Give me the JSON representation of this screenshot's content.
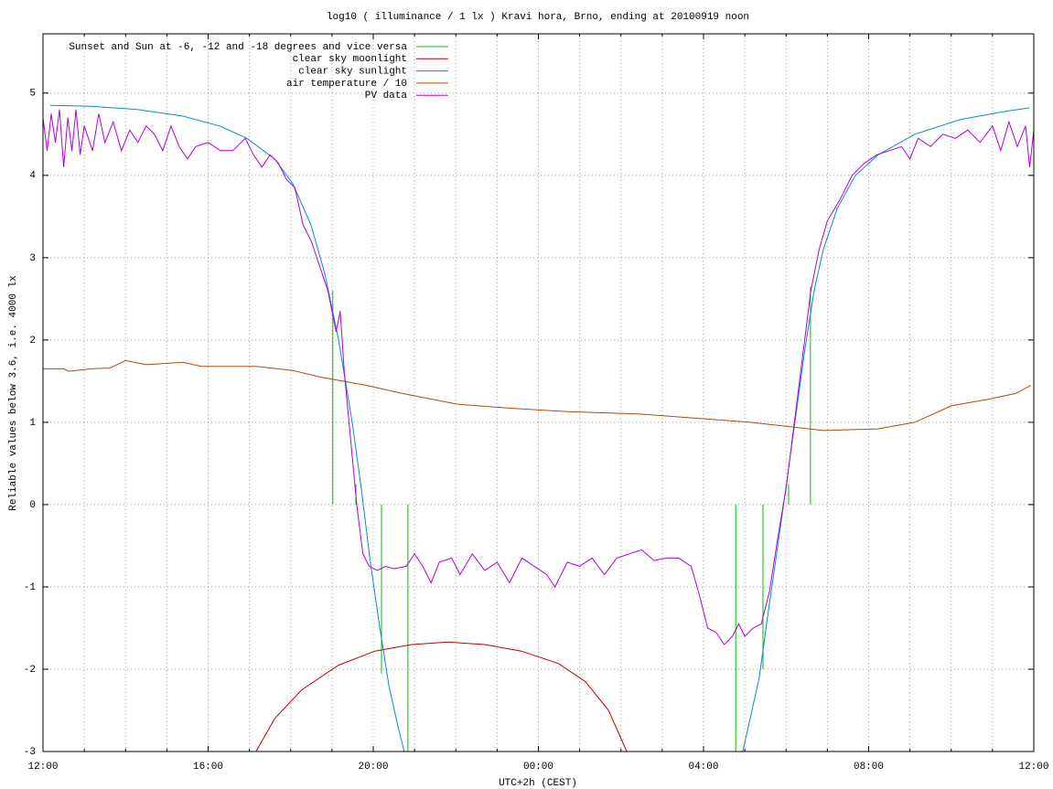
{
  "chart_data": {
    "type": "line",
    "title": "log10 ( illuminance / 1 lx ) Kravi hora, Brno, ending at 20100919 noon",
    "x_label": "UTC+2h (CEST)",
    "y_label": "Reliable values below 3.6, i.e. 4000 lx",
    "xlim": [
      0,
      24
    ],
    "xticks": [
      {
        "value": 0,
        "label": "12:00"
      },
      {
        "value": 4,
        "label": "16:00"
      },
      {
        "value": 8,
        "label": "20:00"
      },
      {
        "value": 12,
        "label": "00:00"
      },
      {
        "value": 16,
        "label": "04:00"
      },
      {
        "value": 20,
        "label": "08:00"
      },
      {
        "value": 24,
        "label": "12:00"
      }
    ],
    "xgrid": [
      1,
      2,
      3,
      5,
      6,
      7,
      9,
      10,
      11,
      13,
      14,
      15,
      17,
      18,
      19,
      21,
      22,
      23
    ],
    "ylim": [
      -3,
      5.72
    ],
    "yticks": [
      -3,
      -2,
      -1,
      0,
      1,
      2,
      3,
      4,
      5
    ],
    "grid": true,
    "legend": "top-left",
    "series": [
      {
        "name": "Sunset and Sun at -6, -12 and -18 degrees and vice versa",
        "color": "#00c000",
        "style": "impulses",
        "x": [
          7.02,
          7.58,
          8.2,
          8.84,
          16.78,
          17.44,
          18.06,
          18.59
        ],
        "values": [
          2.6,
          0.25,
          -2.05,
          -3,
          -3,
          -2,
          0.25,
          2.65
        ]
      },
      {
        "name": "clear sky moonlight",
        "color": "#c00000",
        "style": "lines",
        "x": [
          5.16,
          5.61,
          6.27,
          7.16,
          8.04,
          8.93,
          9.82,
          10.7,
          11.59,
          12.48,
          13.14,
          13.7,
          14.14
        ],
        "values": [
          -3,
          -2.6,
          -2.25,
          -1.95,
          -1.78,
          -1.7,
          -1.67,
          -1.7,
          -1.78,
          -1.93,
          -2.15,
          -2.5,
          -3
        ]
      },
      {
        "name": "clear sky sunlight",
        "color": "#0a88d8",
        "style": "lines",
        "x": [
          0.18,
          1.17,
          2.28,
          3.39,
          4.28,
          4.94,
          5.61,
          6.05,
          6.49,
          6.83,
          7.16,
          7.49,
          7.71,
          7.93,
          8.16,
          8.38,
          8.6,
          8.75,
          null,
          16.95,
          17.13,
          17.35,
          17.57,
          17.8,
          18.02,
          18.24,
          18.46,
          18.68,
          18.9,
          19.24,
          19.68,
          20.23,
          21.12,
          22.23,
          23.34,
          23.89
        ],
        "values": [
          4.85,
          4.84,
          4.8,
          4.72,
          4.6,
          4.45,
          4.2,
          3.9,
          3.4,
          2.8,
          2.0,
          1.0,
          0.2,
          -0.7,
          -1.5,
          -2.2,
          -2.7,
          -3,
          null,
          -3,
          -2.6,
          -2.1,
          -1.3,
          -0.5,
          0.3,
          1.1,
          1.9,
          2.6,
          3.1,
          3.6,
          4.0,
          4.25,
          4.5,
          4.68,
          4.78,
          4.82
        ]
      },
      {
        "name": "air temperature / 10",
        "color": "#b04a10",
        "style": "lines",
        "x": [
          0,
          0.51,
          0.62,
          1.17,
          1.62,
          2.0,
          2.5,
          3.39,
          3.83,
          5.16,
          6.05,
          6.71,
          7.82,
          8.71,
          10.04,
          11.37,
          12.7,
          14.47,
          15.8,
          17.13,
          18.02,
          18.9,
          20.23,
          21.12,
          22.0,
          22.89,
          23.56,
          23.93
        ],
        "values": [
          1.65,
          1.65,
          1.62,
          1.65,
          1.66,
          1.75,
          1.7,
          1.73,
          1.68,
          1.68,
          1.63,
          1.55,
          1.45,
          1.35,
          1.22,
          1.17,
          1.13,
          1.1,
          1.05,
          1.0,
          0.95,
          0.9,
          0.92,
          1.0,
          1.2,
          1.28,
          1.35,
          1.45
        ]
      },
      {
        "name": "PV data",
        "color": "#b000e0",
        "style": "lines",
        "x": [
          0.0,
          0.1,
          0.2,
          0.3,
          0.4,
          0.5,
          0.6,
          0.7,
          0.8,
          0.9,
          1.0,
          1.2,
          1.35,
          1.5,
          1.7,
          1.9,
          2.1,
          2.3,
          2.5,
          2.7,
          2.9,
          3.1,
          3.3,
          3.5,
          3.7,
          4.0,
          4.3,
          4.6,
          4.9,
          5.1,
          5.3,
          5.5,
          5.7,
          5.9,
          6.1,
          6.3,
          6.5,
          6.7,
          6.9,
          7.1,
          7.2,
          7.3,
          7.45,
          7.6,
          7.75,
          7.9,
          8.1,
          8.3,
          8.5,
          8.8,
          9.0,
          9.2,
          9.4,
          9.6,
          9.9,
          10.1,
          10.4,
          10.7,
          11.0,
          11.3,
          11.6,
          11.9,
          12.2,
          12.4,
          12.7,
          13.0,
          13.3,
          13.6,
          13.9,
          14.2,
          14.5,
          14.8,
          15.1,
          15.4,
          15.7,
          15.9,
          16.1,
          16.3,
          16.5,
          16.7,
          16.85,
          17.0,
          17.2,
          17.4,
          17.6,
          17.8,
          18.0,
          18.2,
          18.4,
          18.6,
          18.8,
          19.0,
          19.3,
          19.6,
          19.9,
          20.2,
          20.5,
          20.8,
          21.0,
          21.2,
          21.5,
          21.8,
          22.1,
          22.4,
          22.7,
          23.0,
          23.2,
          23.4,
          23.6,
          23.8,
          23.9,
          24.0
        ],
        "values": [
          4.7,
          4.3,
          4.75,
          4.4,
          4.8,
          4.1,
          4.7,
          4.3,
          4.8,
          4.25,
          4.6,
          4.3,
          4.75,
          4.4,
          4.65,
          4.3,
          4.55,
          4.4,
          4.6,
          4.5,
          4.3,
          4.6,
          4.35,
          4.2,
          4.35,
          4.4,
          4.3,
          4.3,
          4.45,
          4.25,
          4.1,
          4.25,
          4.15,
          3.95,
          3.85,
          3.4,
          3.2,
          2.9,
          2.6,
          2.1,
          2.35,
          1.6,
          0.8,
          0.0,
          -0.6,
          -0.75,
          -0.8,
          -0.75,
          -0.78,
          -0.75,
          -0.6,
          -0.75,
          -0.95,
          -0.7,
          -0.65,
          -0.85,
          -0.6,
          -0.8,
          -0.7,
          -0.95,
          -0.65,
          -0.75,
          -0.85,
          -1.0,
          -0.7,
          -0.75,
          -0.65,
          -0.85,
          -0.65,
          -0.6,
          -0.55,
          -0.68,
          -0.65,
          -0.65,
          -0.75,
          -1.1,
          -1.5,
          -1.55,
          -1.7,
          -1.6,
          -1.45,
          -1.6,
          -1.5,
          -1.45,
          -1.05,
          -0.4,
          0.2,
          1.0,
          1.8,
          2.6,
          3.1,
          3.45,
          3.7,
          4.0,
          4.15,
          4.25,
          4.3,
          4.35,
          4.2,
          4.45,
          4.35,
          4.5,
          4.45,
          4.55,
          4.4,
          4.6,
          4.3,
          4.65,
          4.35,
          4.6,
          4.1,
          4.55
        ]
      }
    ]
  }
}
